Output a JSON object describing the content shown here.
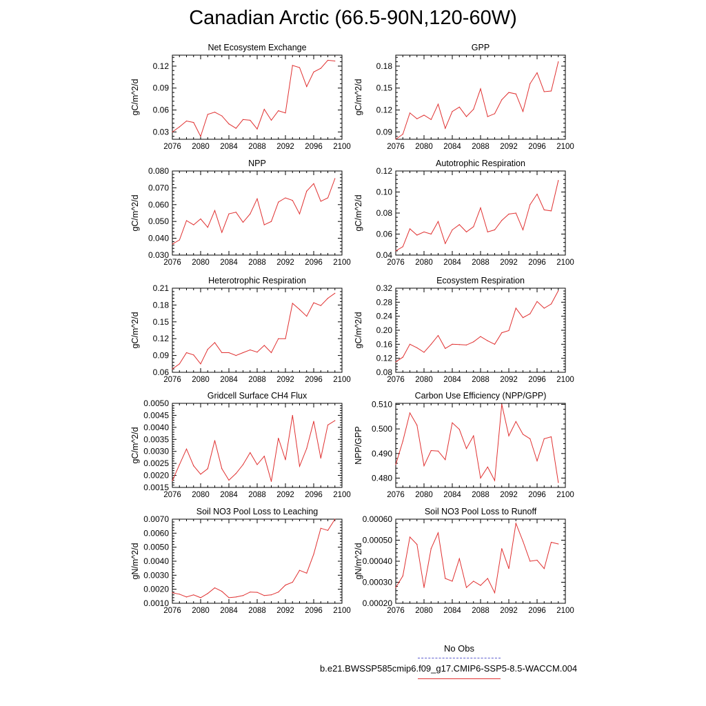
{
  "title": "Canadian Arctic (66.5-90N,120-60W)",
  "legend": {
    "obs_label": "No Obs",
    "obs_color": "#5a5acd",
    "model_label": "b.e21.BWSSP585cmip6.f09_g17.CMIP6-SSP5-8.5-WACCM.004",
    "model_color": "#e03030"
  },
  "chart_data": [
    {
      "type": "line",
      "title": "Net Ecosystem Exchange",
      "ylabel": "gC/m^2/d",
      "xlim": [
        2076,
        2100
      ],
      "ylim": [
        0.02,
        0.135
      ],
      "xticks": [
        "2076",
        "2080",
        "2084",
        "2088",
        "2092",
        "2096",
        "2100"
      ],
      "yticks": [
        "0.03",
        "0.06",
        "0.09",
        "0.12"
      ],
      "x": [
        2076,
        2077,
        2078,
        2079,
        2080,
        2081,
        2082,
        2083,
        2084,
        2085,
        2086,
        2087,
        2088,
        2089,
        2090,
        2091,
        2092,
        2093,
        2094,
        2095,
        2096,
        2097,
        2098,
        2099
      ],
      "series": [
        {
          "values": [
            0.03,
            0.037,
            0.045,
            0.043,
            0.024,
            0.054,
            0.057,
            0.052,
            0.041,
            0.035,
            0.047,
            0.046,
            0.034,
            0.061,
            0.046,
            0.059,
            0.056,
            0.121,
            0.118,
            0.092,
            0.112,
            0.117,
            0.128,
            0.127
          ]
        }
      ]
    },
    {
      "type": "line",
      "title": "GPP",
      "ylabel": "gC/m^2/d",
      "xlim": [
        2076,
        2100
      ],
      "ylim": [
        0.08,
        0.195
      ],
      "xticks": [
        "2076",
        "2080",
        "2084",
        "2088",
        "2092",
        "2096",
        "2100"
      ],
      "yticks": [
        "0.09",
        "0.12",
        "0.15",
        "0.18"
      ],
      "x": [
        2076,
        2077,
        2078,
        2079,
        2080,
        2081,
        2082,
        2083,
        2084,
        2085,
        2086,
        2087,
        2088,
        2089,
        2090,
        2091,
        2092,
        2093,
        2094,
        2095,
        2096,
        2097,
        2098,
        2099
      ],
      "series": [
        {
          "values": [
            0.08,
            0.087,
            0.116,
            0.108,
            0.113,
            0.107,
            0.128,
            0.095,
            0.118,
            0.124,
            0.111,
            0.121,
            0.149,
            0.111,
            0.115,
            0.134,
            0.144,
            0.142,
            0.118,
            0.156,
            0.171,
            0.145,
            0.146,
            0.186
          ]
        }
      ]
    },
    {
      "type": "line",
      "title": "NPP",
      "ylabel": "gC/m^2/d",
      "xlim": [
        2076,
        2100
      ],
      "ylim": [
        0.03,
        0.08
      ],
      "xticks": [
        "2076",
        "2080",
        "2084",
        "2088",
        "2092",
        "2096",
        "2100"
      ],
      "yticks": [
        "0.030",
        "0.040",
        "0.050",
        "0.060",
        "0.070",
        "0.080"
      ],
      "x": [
        2076,
        2077,
        2078,
        2079,
        2080,
        2081,
        2082,
        2083,
        2084,
        2085,
        2086,
        2087,
        2088,
        2089,
        2090,
        2091,
        2092,
        2093,
        2094,
        2095,
        2096,
        2097,
        2098,
        2099
      ],
      "series": [
        {
          "values": [
            0.0365,
            0.039,
            0.0505,
            0.048,
            0.0515,
            0.0465,
            0.0565,
            0.0435,
            0.0545,
            0.0555,
            0.0495,
            0.0545,
            0.0635,
            0.048,
            0.05,
            0.0615,
            0.064,
            0.0625,
            0.0545,
            0.068,
            0.0725,
            0.062,
            0.064,
            0.0755
          ]
        }
      ]
    },
    {
      "type": "line",
      "title": "Autotrophic Respiration",
      "ylabel": "gC/m^2/d",
      "xlim": [
        2076,
        2100
      ],
      "ylim": [
        0.04,
        0.12
      ],
      "xticks": [
        "2076",
        "2080",
        "2084",
        "2088",
        "2092",
        "2096",
        "2100"
      ],
      "yticks": [
        "0.04",
        "0.06",
        "0.08",
        "0.10",
        "0.12"
      ],
      "x": [
        2076,
        2077,
        2078,
        2079,
        2080,
        2081,
        2082,
        2083,
        2084,
        2085,
        2086,
        2087,
        2088,
        2089,
        2090,
        2091,
        2092,
        2093,
        2094,
        2095,
        2096,
        2097,
        2098,
        2099
      ],
      "series": [
        {
          "values": [
            0.044,
            0.048,
            0.065,
            0.059,
            0.062,
            0.06,
            0.072,
            0.051,
            0.064,
            0.069,
            0.062,
            0.067,
            0.085,
            0.062,
            0.064,
            0.073,
            0.079,
            0.08,
            0.064,
            0.088,
            0.098,
            0.083,
            0.082,
            0.111
          ]
        }
      ]
    },
    {
      "type": "line",
      "title": "Heterotrophic Respiration",
      "ylabel": "gC/m^2/d",
      "xlim": [
        2076,
        2100
      ],
      "ylim": [
        0.06,
        0.21
      ],
      "xticks": [
        "2076",
        "2080",
        "2084",
        "2088",
        "2092",
        "2096",
        "2100"
      ],
      "yticks": [
        "0.06",
        "0.09",
        "0.12",
        "0.15",
        "0.18",
        "0.21"
      ],
      "x": [
        2076,
        2077,
        2078,
        2079,
        2080,
        2081,
        2082,
        2083,
        2084,
        2085,
        2086,
        2087,
        2088,
        2089,
        2090,
        2091,
        2092,
        2093,
        2094,
        2095,
        2096,
        2097,
        2098,
        2099
      ],
      "series": [
        {
          "values": [
            0.066,
            0.075,
            0.095,
            0.091,
            0.075,
            0.101,
            0.113,
            0.095,
            0.095,
            0.09,
            0.095,
            0.1,
            0.096,
            0.108,
            0.095,
            0.12,
            0.12,
            0.183,
            0.172,
            0.16,
            0.184,
            0.179,
            0.192,
            0.201
          ]
        }
      ]
    },
    {
      "type": "line",
      "title": "Ecosystem Respiration",
      "ylabel": "gC/m^2/d",
      "xlim": [
        2076,
        2100
      ],
      "ylim": [
        0.08,
        0.32
      ],
      "xticks": [
        "2076",
        "2080",
        "2084",
        "2088",
        "2092",
        "2096",
        "2100"
      ],
      "yticks": [
        "0.08",
        "0.12",
        "0.16",
        "0.20",
        "0.24",
        "0.28",
        "0.32"
      ],
      "x": [
        2076,
        2077,
        2078,
        2079,
        2080,
        2081,
        2082,
        2083,
        2084,
        2085,
        2086,
        2087,
        2088,
        2089,
        2090,
        2091,
        2092,
        2093,
        2094,
        2095,
        2096,
        2097,
        2098,
        2099
      ],
      "series": [
        {
          "values": [
            0.11,
            0.123,
            0.16,
            0.15,
            0.137,
            0.16,
            0.185,
            0.148,
            0.16,
            0.159,
            0.158,
            0.167,
            0.182,
            0.17,
            0.16,
            0.193,
            0.199,
            0.263,
            0.236,
            0.247,
            0.282,
            0.263,
            0.275,
            0.313
          ]
        }
      ]
    },
    {
      "type": "line",
      "title": "Gridcell Surface CH4 Flux",
      "ylabel": "gC/m^2/d",
      "xlim": [
        2076,
        2100
      ],
      "ylim": [
        0.0015,
        0.005
      ],
      "xticks": [
        "2076",
        "2080",
        "2084",
        "2088",
        "2092",
        "2096",
        "2100"
      ],
      "yticks": [
        "0.0015",
        "0.0020",
        "0.0025",
        "0.0030",
        "0.0035",
        "0.0040",
        "0.0045",
        "0.0050"
      ],
      "x": [
        2076,
        2077,
        2078,
        2079,
        2080,
        2081,
        2082,
        2083,
        2084,
        2085,
        2086,
        2087,
        2088,
        2089,
        2090,
        2091,
        2092,
        2093,
        2094,
        2095,
        2096,
        2097,
        2098,
        2099
      ],
      "series": [
        {
          "values": [
            0.00178,
            0.00245,
            0.0031,
            0.0024,
            0.00205,
            0.00228,
            0.00345,
            0.00228,
            0.0018,
            0.00208,
            0.00245,
            0.00295,
            0.00245,
            0.0028,
            0.00175,
            0.00355,
            0.00265,
            0.0045,
            0.00238,
            0.00312,
            0.00425,
            0.00272,
            0.0041,
            0.00428
          ]
        }
      ]
    },
    {
      "type": "line",
      "title": "Carbon Use Efficiency (NPP/GPP)",
      "ylabel": "NPP/GPP",
      "xlim": [
        2076,
        2100
      ],
      "ylim": [
        0.4762,
        0.5104
      ],
      "xticks": [
        "2076",
        "2080",
        "2084",
        "2088",
        "2092",
        "2096",
        "2100"
      ],
      "yticks": [
        "0.480",
        "0.490",
        "0.500",
        "0.510"
      ],
      "x": [
        2076,
        2077,
        2078,
        2079,
        2080,
        2081,
        2082,
        2083,
        2084,
        2085,
        2086,
        2087,
        2088,
        2089,
        2090,
        2091,
        2092,
        2093,
        2094,
        2095,
        2096,
        2097,
        2098,
        2099
      ],
      "series": [
        {
          "values": [
            0.4855,
            0.495,
            0.5065,
            0.5015,
            0.485,
            0.4912,
            0.491,
            0.4875,
            0.5025,
            0.4998,
            0.492,
            0.4972,
            0.48,
            0.4845,
            0.479,
            0.51,
            0.4972,
            0.503,
            0.4978,
            0.496,
            0.487,
            0.496,
            0.4968,
            0.4782
          ]
        }
      ]
    },
    {
      "type": "line",
      "title": "Soil NO3 Pool Loss to Leaching",
      "ylabel": "gN/m^2/d",
      "xlim": [
        2076,
        2100
      ],
      "ylim": [
        0.001,
        0.007
      ],
      "xticks": [
        "2076",
        "2080",
        "2084",
        "2088",
        "2092",
        "2096",
        "2100"
      ],
      "yticks": [
        "0.0010",
        "0.0020",
        "0.0030",
        "0.0040",
        "0.0050",
        "0.0060",
        "0.0070"
      ],
      "x": [
        2076,
        2077,
        2078,
        2079,
        2080,
        2081,
        2082,
        2083,
        2084,
        2085,
        2086,
        2087,
        2088,
        2089,
        2090,
        2091,
        2092,
        2093,
        2094,
        2095,
        2096,
        2097,
        2098,
        2099
      ],
      "series": [
        {
          "values": [
            0.00175,
            0.00165,
            0.00145,
            0.0016,
            0.0014,
            0.0017,
            0.0021,
            0.00185,
            0.0014,
            0.00145,
            0.00155,
            0.0018,
            0.00178,
            0.00155,
            0.0016,
            0.0018,
            0.0023,
            0.0025,
            0.00335,
            0.00315,
            0.0045,
            0.00635,
            0.0062,
            0.007
          ]
        }
      ]
    },
    {
      "type": "line",
      "title": "Soil NO3 Pool Loss to Runoff",
      "ylabel": "gN/m^2/d",
      "xlim": [
        2076,
        2100
      ],
      "ylim": [
        0.0002,
        0.0006
      ],
      "xticks": [
        "2076",
        "2080",
        "2084",
        "2088",
        "2092",
        "2096",
        "2100"
      ],
      "yticks": [
        "0.00020",
        "0.00030",
        "0.00040",
        "0.00050",
        "0.00060"
      ],
      "x": [
        2076,
        2077,
        2078,
        2079,
        2080,
        2081,
        2082,
        2083,
        2084,
        2085,
        2086,
        2087,
        2088,
        2089,
        2090,
        2091,
        2092,
        2093,
        2094,
        2095,
        2096,
        2097,
        2098,
        2099
      ],
      "series": [
        {
          "values": [
            0.000275,
            0.00033,
            0.000515,
            0.00048,
            0.000275,
            0.00046,
            0.000535,
            0.000318,
            0.000305,
            0.000412,
            0.000275,
            0.000305,
            0.000285,
            0.000318,
            0.00025,
            0.00046,
            0.000365,
            0.00058,
            0.000495,
            0.0004,
            0.000405,
            0.000365,
            0.00049,
            0.000482
          ]
        }
      ]
    }
  ]
}
